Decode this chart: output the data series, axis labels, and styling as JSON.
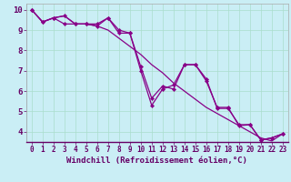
{
  "xlabel": "Windchill (Refroidissement éolien,°C)",
  "background_color": "#caeef5",
  "grid_color": "#aaddcc",
  "line_color": "#880088",
  "xlim": [
    -0.5,
    23.5
  ],
  "ylim": [
    3.5,
    10.3
  ],
  "xticks": [
    0,
    1,
    2,
    3,
    4,
    5,
    6,
    7,
    8,
    9,
    10,
    11,
    12,
    13,
    14,
    15,
    16,
    17,
    18,
    19,
    20,
    21,
    22,
    23
  ],
  "yticks": [
    4,
    5,
    6,
    7,
    8,
    9,
    10
  ],
  "line1_x": [
    0,
    1,
    2,
    3,
    4,
    5,
    6,
    7,
    8,
    9,
    10,
    11,
    12,
    13,
    14,
    15,
    16,
    17,
    18,
    19,
    20,
    21,
    22,
    23
  ],
  "line1_y": [
    10.0,
    9.4,
    9.6,
    9.7,
    9.3,
    9.3,
    9.3,
    9.6,
    9.0,
    8.85,
    7.0,
    5.3,
    6.1,
    6.3,
    7.3,
    7.3,
    6.5,
    5.2,
    5.2,
    4.3,
    4.35,
    3.6,
    3.7,
    3.9
  ],
  "line2_x": [
    0,
    1,
    2,
    3,
    4,
    5,
    6,
    7,
    8,
    9,
    10,
    11,
    12,
    13,
    14,
    15,
    16,
    17,
    18,
    19,
    20,
    21,
    22,
    23
  ],
  "line2_y": [
    10.0,
    9.4,
    9.6,
    9.7,
    9.3,
    9.3,
    9.2,
    9.0,
    8.6,
    8.2,
    7.8,
    7.3,
    6.9,
    6.4,
    6.0,
    5.6,
    5.2,
    4.9,
    4.6,
    4.3,
    4.0,
    3.7,
    3.55,
    3.9
  ],
  "line3_x": [
    0,
    1,
    2,
    3,
    4,
    5,
    6,
    7,
    8,
    9,
    10,
    11,
    12,
    13,
    14,
    15,
    16,
    17,
    18,
    19,
    20,
    21,
    22,
    23
  ],
  "line3_y": [
    10.0,
    9.4,
    9.6,
    9.3,
    9.3,
    9.3,
    9.2,
    9.6,
    8.85,
    8.85,
    7.2,
    5.65,
    6.25,
    6.1,
    7.3,
    7.3,
    6.6,
    5.15,
    5.15,
    4.35,
    4.35,
    3.6,
    3.7,
    3.9
  ],
  "tick_color": "#660066",
  "xlabel_fontsize": 6.5,
  "tick_fontsize": 5.5,
  "ytick_fontsize": 6.5,
  "linewidth": 0.9,
  "markersize": 2.2
}
